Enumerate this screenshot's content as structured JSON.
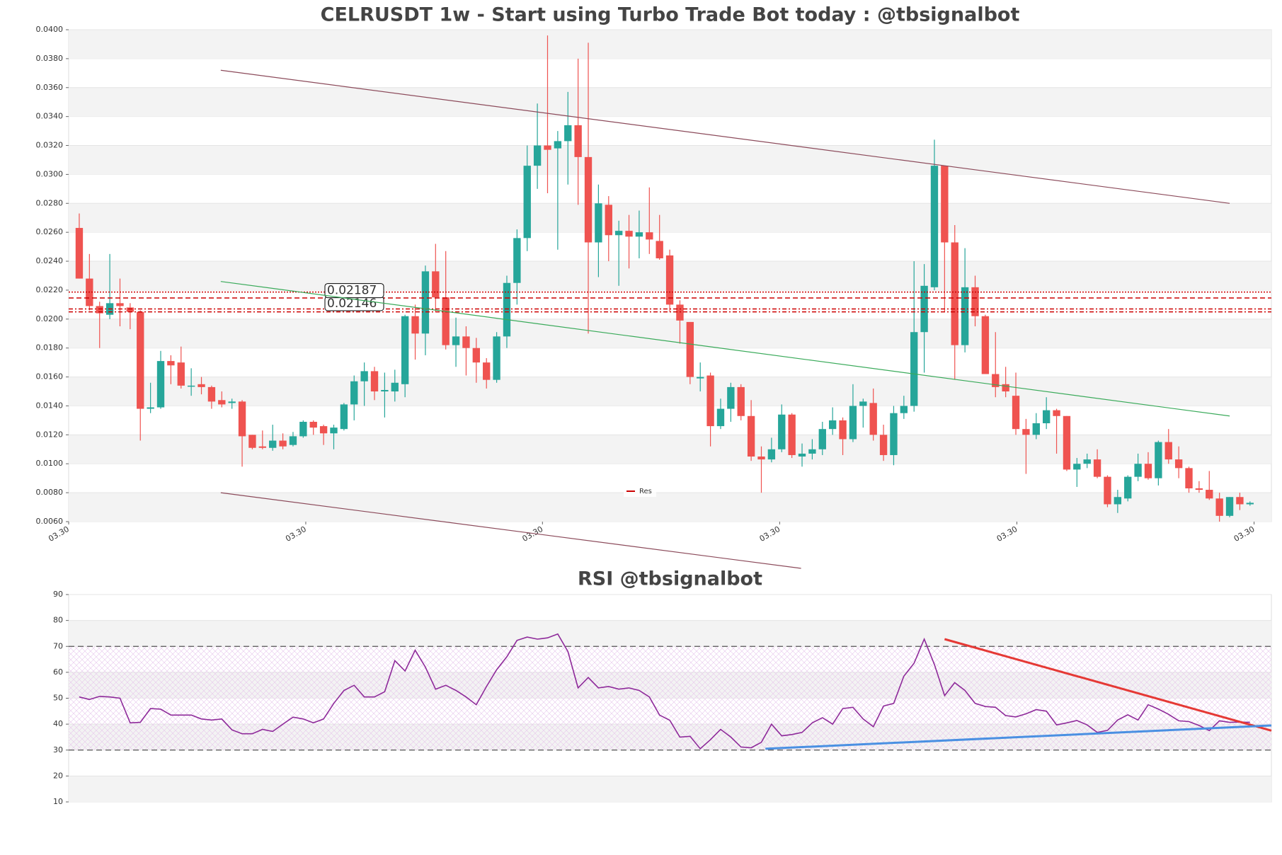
{
  "chart_data": [
    {
      "type": "candlestick",
      "title": "CELRUSDT 1w - Start using Turbo Trade Bot today : @tbsignalbot",
      "up_color": "#26a69a",
      "down_color": "#ef5350",
      "xlim": [
        -1.04,
        117.1
      ],
      "xticks": [
        {
          "value": -1.04,
          "label": "03.30"
        },
        {
          "value": 22.25,
          "label": "03.30"
        },
        {
          "value": 45.5,
          "label": "03.30"
        },
        {
          "value": 68.8,
          "label": "03.30"
        },
        {
          "value": 92.1,
          "label": "03.30"
        },
        {
          "value": 115.4,
          "label": "03.30"
        }
      ],
      "ylim": [
        0.006,
        0.04
      ],
      "yticks": [
        {
          "value": 0.006,
          "label": "0.0060"
        },
        {
          "value": 0.008,
          "label": "0.0080"
        },
        {
          "value": 0.01,
          "label": "0.0100"
        },
        {
          "value": 0.012,
          "label": "0.0120"
        },
        {
          "value": 0.014,
          "label": "0.0140"
        },
        {
          "value": 0.016,
          "label": "0.0160"
        },
        {
          "value": 0.018,
          "label": "0.0180"
        },
        {
          "value": 0.02,
          "label": "0.0200"
        },
        {
          "value": 0.022,
          "label": "0.0220"
        },
        {
          "value": 0.024,
          "label": "0.0240"
        },
        {
          "value": 0.026,
          "label": "0.0260"
        },
        {
          "value": 0.028,
          "label": "0.0280"
        },
        {
          "value": 0.03,
          "label": "0.0300"
        },
        {
          "value": 0.032,
          "label": "0.0320"
        },
        {
          "value": 0.034,
          "label": "0.0340"
        },
        {
          "value": 0.036,
          "label": "0.0360"
        },
        {
          "value": 0.038,
          "label": "0.0380"
        },
        {
          "value": 0.04,
          "label": "0.0400"
        }
      ],
      "grid": true,
      "open": [
        0.0263,
        0.0228,
        0.0209,
        0.0203,
        0.0211,
        0.0208,
        0.0205,
        0.0138,
        0.0139,
        0.0171,
        0.017,
        0.0154,
        0.0155,
        0.0153,
        0.0144,
        0.0142,
        0.0143,
        0.012,
        0.0112,
        0.0111,
        0.0116,
        0.0113,
        0.0119,
        0.0129,
        0.0126,
        0.0121,
        0.0124,
        0.0141,
        0.0157,
        0.0164,
        0.015,
        0.015,
        0.0155,
        0.0202,
        0.019,
        0.0233,
        0.0215,
        0.0182,
        0.0188,
        0.018,
        0.017,
        0.0158,
        0.0188,
        0.0225,
        0.0256,
        0.0306,
        0.032,
        0.0318,
        0.0323,
        0.0334,
        0.0312,
        0.0253,
        0.0279,
        0.0258,
        0.0261,
        0.0257,
        0.026,
        0.0254,
        0.0244,
        0.021,
        0.0198,
        0.0159,
        0.0161,
        0.0126,
        0.0138,
        0.0153,
        0.0133,
        0.0105,
        0.0103,
        0.011,
        0.0134,
        0.0105,
        0.0107,
        0.011,
        0.0124,
        0.013,
        0.0117,
        0.014,
        0.0142,
        0.012,
        0.0106,
        0.0135,
        0.014,
        0.0191,
        0.0222,
        0.0306,
        0.0253,
        0.0182,
        0.0222,
        0.0202,
        0.0162,
        0.0155,
        0.0147,
        0.0124,
        0.012,
        0.0128,
        0.0137,
        0.0133,
        0.0096,
        0.01,
        0.0103,
        0.0091,
        0.0072,
        0.0076,
        0.0091,
        0.01,
        0.009,
        0.0115,
        0.0103,
        0.0097,
        0.0083,
        0.0082,
        0.0076,
        0.0064,
        0.0077,
        0.0072
      ],
      "high": [
        0.0273,
        0.0245,
        0.0212,
        0.0245,
        0.0228,
        0.0211,
        0.0206,
        0.0156,
        0.0178,
        0.0175,
        0.0181,
        0.0166,
        0.016,
        0.0154,
        0.015,
        0.0145,
        0.0144,
        0.012,
        0.0123,
        0.0127,
        0.0121,
        0.0122,
        0.013,
        0.013,
        0.0127,
        0.0127,
        0.0142,
        0.0161,
        0.017,
        0.0167,
        0.0163,
        0.0165,
        0.0203,
        0.021,
        0.0237,
        0.0252,
        0.0247,
        0.0201,
        0.0195,
        0.0187,
        0.0173,
        0.0191,
        0.023,
        0.0262,
        0.032,
        0.0349,
        0.0396,
        0.033,
        0.0357,
        0.038,
        0.0391,
        0.0293,
        0.0285,
        0.0268,
        0.0272,
        0.0275,
        0.0291,
        0.0272,
        0.0248,
        0.0213,
        0.0198,
        0.017,
        0.0163,
        0.0145,
        0.0156,
        0.0155,
        0.0144,
        0.0112,
        0.0118,
        0.0141,
        0.0135,
        0.0114,
        0.0117,
        0.0129,
        0.0139,
        0.0132,
        0.0155,
        0.0145,
        0.0152,
        0.0127,
        0.014,
        0.0147,
        0.024,
        0.0238,
        0.0324,
        0.0306,
        0.0265,
        0.0249,
        0.023,
        0.0203,
        0.0191,
        0.0167,
        0.0163,
        0.0131,
        0.0135,
        0.0146,
        0.0138,
        0.0133,
        0.0104,
        0.0107,
        0.011,
        0.0092,
        0.0082,
        0.0092,
        0.0107,
        0.0108,
        0.0116,
        0.0124,
        0.0112,
        0.0098,
        0.0088,
        0.0095,
        0.008,
        0.0077,
        0.008,
        0.0074
      ],
      "low": [
        0.0228,
        0.0206,
        0.018,
        0.02,
        0.0195,
        0.0193,
        0.0116,
        0.0135,
        0.0138,
        0.0155,
        0.0152,
        0.0147,
        0.0148,
        0.0138,
        0.0139,
        0.0138,
        0.0098,
        0.011,
        0.011,
        0.0109,
        0.011,
        0.0112,
        0.0118,
        0.012,
        0.0113,
        0.011,
        0.0123,
        0.013,
        0.014,
        0.0144,
        0.0132,
        0.0143,
        0.0146,
        0.0172,
        0.0175,
        0.0205,
        0.0179,
        0.0167,
        0.0161,
        0.0156,
        0.0152,
        0.0156,
        0.018,
        0.021,
        0.0247,
        0.029,
        0.0287,
        0.0248,
        0.0293,
        0.0279,
        0.019,
        0.0229,
        0.024,
        0.0223,
        0.0235,
        0.0242,
        0.0245,
        0.0241,
        0.0205,
        0.0183,
        0.0155,
        0.015,
        0.0112,
        0.0124,
        0.0129,
        0.013,
        0.0102,
        0.008,
        0.0101,
        0.0108,
        0.0104,
        0.0098,
        0.0103,
        0.0106,
        0.012,
        0.0106,
        0.0115,
        0.0125,
        0.0116,
        0.0102,
        0.0099,
        0.0131,
        0.0136,
        0.0163,
        0.022,
        0.0205,
        0.0158,
        0.0177,
        0.0195,
        0.0162,
        0.0146,
        0.0146,
        0.012,
        0.0093,
        0.0117,
        0.0124,
        0.0107,
        0.0095,
        0.0084,
        0.0097,
        0.009,
        0.007,
        0.0066,
        0.0074,
        0.0088,
        0.0089,
        0.0085,
        0.01,
        0.009,
        0.008,
        0.008,
        0.0075,
        0.006,
        0.0063,
        0.0068,
        0.0071
      ],
      "close": [
        0.0228,
        0.0209,
        0.0204,
        0.0211,
        0.0209,
        0.0205,
        0.0138,
        0.0139,
        0.0171,
        0.0168,
        0.0154,
        0.0154,
        0.0153,
        0.0143,
        0.0141,
        0.0143,
        0.0119,
        0.0111,
        0.0111,
        0.0116,
        0.0112,
        0.0119,
        0.0129,
        0.0125,
        0.0121,
        0.0125,
        0.0141,
        0.0157,
        0.0164,
        0.015,
        0.0151,
        0.0156,
        0.0202,
        0.019,
        0.0233,
        0.0215,
        0.0182,
        0.0188,
        0.018,
        0.017,
        0.0158,
        0.0188,
        0.0225,
        0.0256,
        0.0306,
        0.032,
        0.0317,
        0.0323,
        0.0334,
        0.0312,
        0.0253,
        0.028,
        0.0258,
        0.0261,
        0.0257,
        0.026,
        0.0255,
        0.0242,
        0.021,
        0.0199,
        0.016,
        0.016,
        0.0126,
        0.0138,
        0.0153,
        0.0133,
        0.0105,
        0.0103,
        0.011,
        0.0134,
        0.0106,
        0.0107,
        0.011,
        0.0124,
        0.013,
        0.0117,
        0.014,
        0.0143,
        0.012,
        0.0106,
        0.0135,
        0.014,
        0.0191,
        0.0223,
        0.0306,
        0.0253,
        0.0182,
        0.0222,
        0.0202,
        0.0162,
        0.0153,
        0.015,
        0.0124,
        0.012,
        0.0128,
        0.0137,
        0.0133,
        0.0096,
        0.01,
        0.0103,
        0.0091,
        0.0072,
        0.0077,
        0.0091,
        0.01,
        0.009,
        0.0115,
        0.0103,
        0.0097,
        0.0083,
        0.0082,
        0.0076,
        0.0064,
        0.0077,
        0.0072,
        0.0073
      ],
      "levels": [
        {
          "value": 0.02187,
          "label": "0.02187",
          "style": "dotted"
        },
        {
          "value": 0.02146,
          "label": "0.02146",
          "style": "dashed"
        },
        {
          "value": 0.0207,
          "style": "dashdot"
        },
        {
          "value": 0.0205,
          "style": "dashdot"
        }
      ],
      "level_color": "#cc0000",
      "legend": {
        "label": "Res"
      },
      "trendlines": [
        {
          "color": "#8b4a5a",
          "x": [
            13.9,
            113.0
          ],
          "y": [
            0.0372,
            0.028
          ]
        },
        {
          "color": "#8b4a5a",
          "x": [
            13.9,
            70.9
          ],
          "y": [
            0.008,
            0.00277
          ]
        },
        {
          "color": "#3aaa5a",
          "x": [
            13.9,
            113.0
          ],
          "y": [
            0.0226,
            0.0133
          ]
        }
      ]
    },
    {
      "type": "line",
      "title": "RSI @tbsignalbot",
      "color": "#8e2a9a",
      "xlim": [
        -1.04,
        117.1
      ],
      "ylim": [
        10,
        90
      ],
      "yticks": [
        10,
        20,
        30,
        40,
        50,
        60,
        70,
        80,
        90
      ],
      "grid": true,
      "band": [
        30,
        70
      ],
      "values": [
        50.5,
        49.5,
        50.7,
        50.5,
        50,
        40.5,
        40.7,
        46,
        45.8,
        43.5,
        43.5,
        43.5,
        42,
        41.6,
        42,
        37.8,
        36.3,
        36.3,
        38,
        37.2,
        40,
        42.7,
        42,
        40.5,
        42,
        48,
        53,
        55,
        50.5,
        50.5,
        52.5,
        64.5,
        60.5,
        68.5,
        62,
        53.5,
        55,
        53,
        50.5,
        47.5,
        54.5,
        61,
        66,
        72.3,
        73.6,
        72.8,
        73.3,
        74.8,
        68,
        54,
        58,
        54,
        54.5,
        53.5,
        54,
        53,
        50.5,
        43.5,
        41.5,
        35,
        35.3,
        30.5,
        34,
        38,
        35,
        31.2,
        30.9,
        33,
        40,
        35.5,
        36,
        36.8,
        40.5,
        42.5,
        40,
        46,
        46.5,
        42,
        39,
        47,
        48,
        58.5,
        63.5,
        72.8,
        63,
        51,
        56,
        53,
        48,
        46.8,
        46.5,
        43.3,
        42.8,
        44,
        45.6,
        45,
        39.7,
        40.5,
        41.4,
        39.7,
        36.8,
        37.6,
        41.6,
        43.6,
        41.6,
        47.5,
        45.8,
        43.8,
        41.3,
        41,
        39.5,
        37.5,
        41.3,
        40.7,
        40.8,
        40.7
      ],
      "trendlines": [
        {
          "color": "#e53935",
          "x": [
            85.0,
            117.1
          ],
          "y": [
            72.8,
            37.5
          ]
        },
        {
          "color": "#4a90e2",
          "x": [
            67.4,
            117.1
          ],
          "y": [
            30.5,
            39.5
          ]
        }
      ]
    }
  ]
}
